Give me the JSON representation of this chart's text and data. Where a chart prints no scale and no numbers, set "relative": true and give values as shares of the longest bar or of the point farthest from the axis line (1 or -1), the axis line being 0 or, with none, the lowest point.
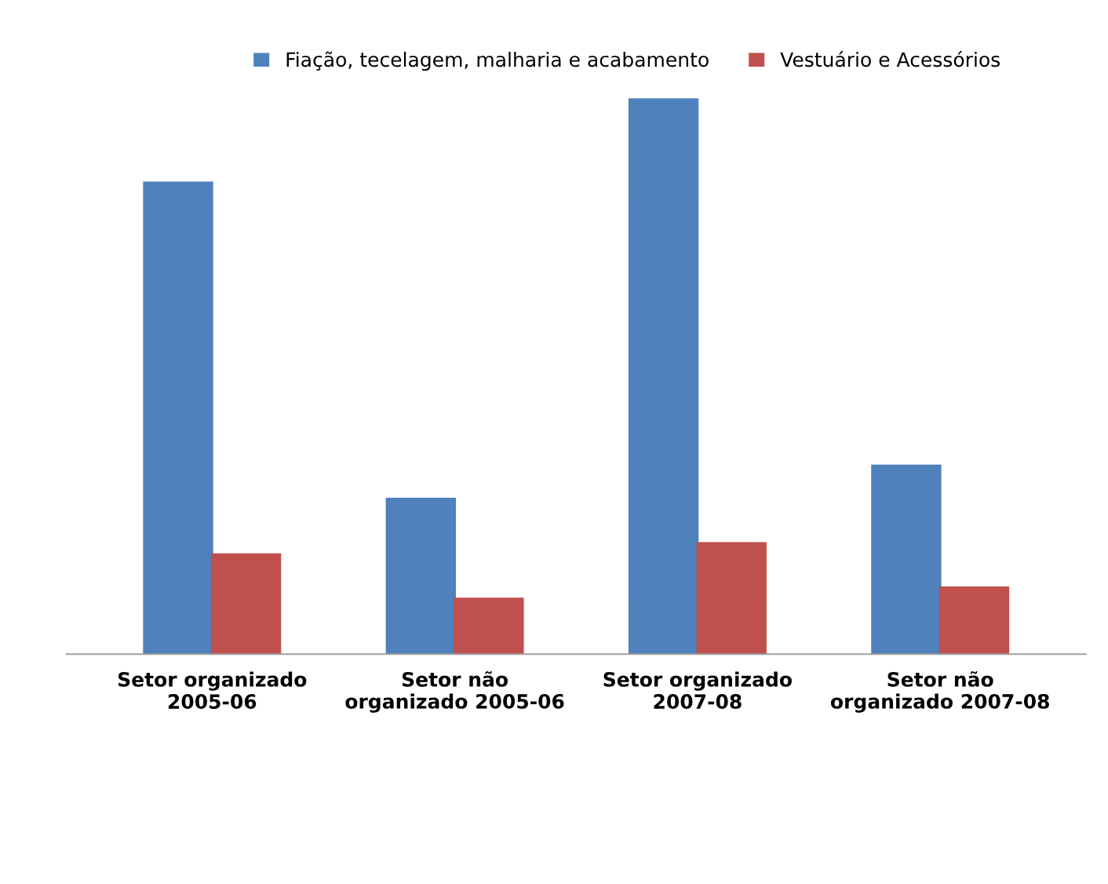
{
  "chart_data": {
    "type": "bar",
    "relative": true,
    "categories": [
      "Setor organizado\n2005-06",
      "Setor não\norganizado 2005-06",
      "Setor organizado\n2007-08",
      "Setor não\norganizado 2007-08"
    ],
    "series": [
      {
        "name": "Fiação, tecelagem, malharia e acabamento",
        "color": "#4f81bd",
        "values": [
          0.85,
          0.28,
          1,
          0.34
        ]
      },
      {
        "name": "Vestuário e Acessórios",
        "color": "#c0504d",
        "values": [
          0.18,
          0.1,
          0.2,
          0.12
        ]
      }
    ],
    "legend": "top",
    "grid": false
  }
}
